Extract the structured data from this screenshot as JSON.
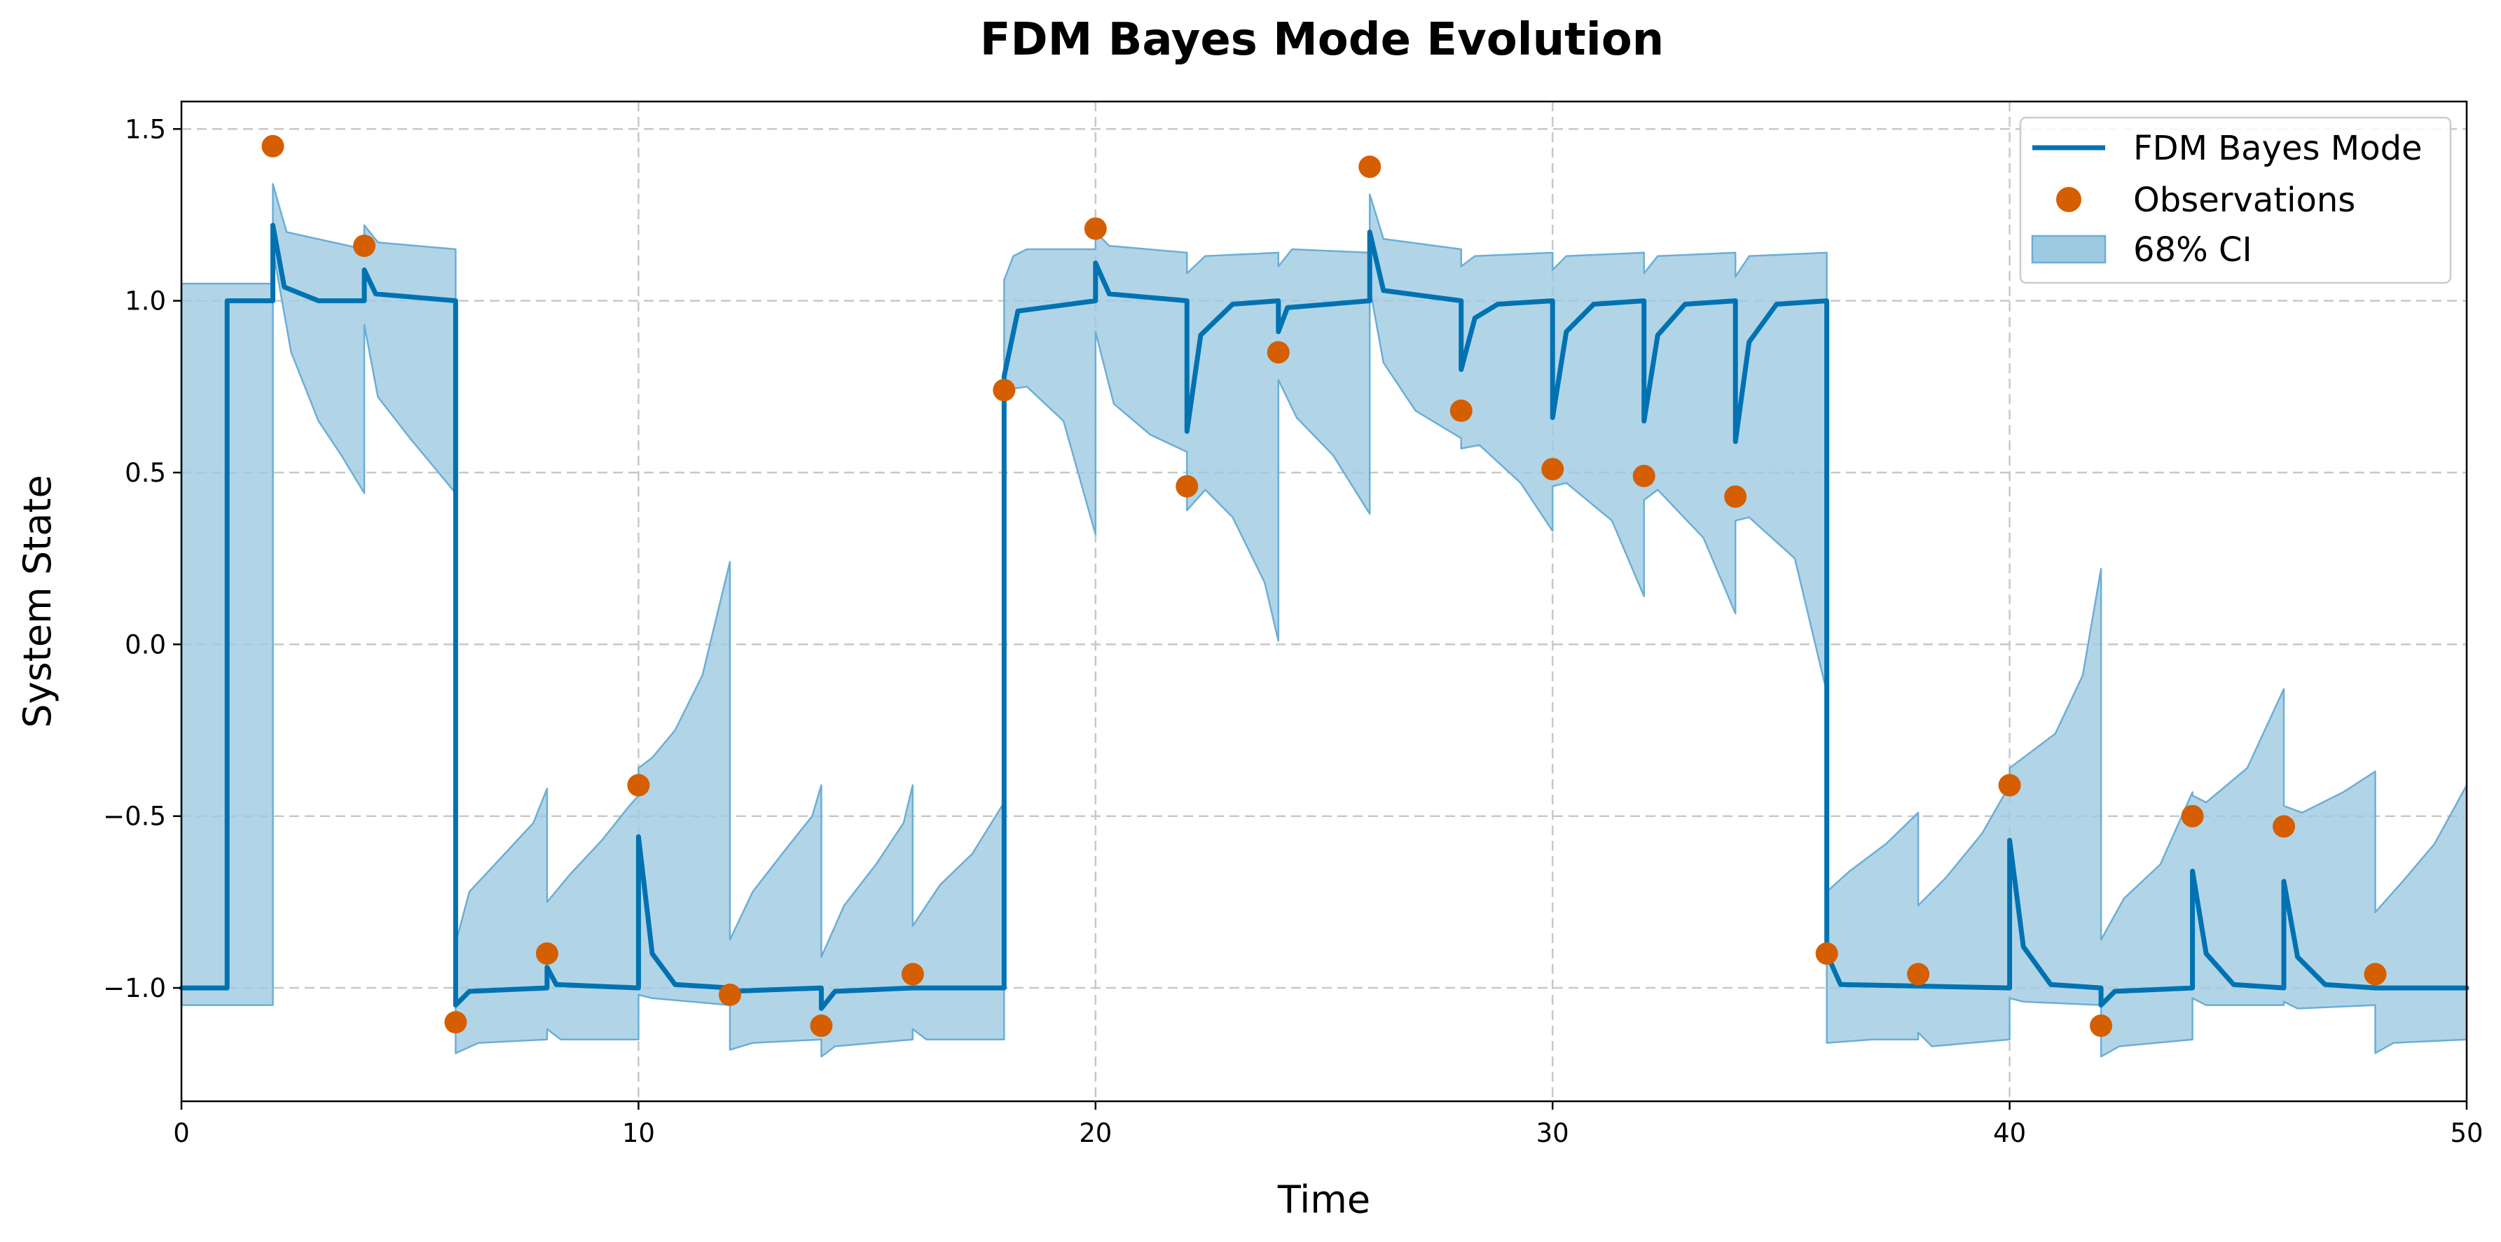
{
  "chart_data": {
    "type": "line",
    "title": "FDM Bayes Mode Evolution",
    "xlabel": "Time",
    "ylabel": "System State",
    "xlim": [
      0,
      50
    ],
    "ylim": [
      -1.33,
      1.58
    ],
    "xticks": [
      0,
      10,
      20,
      30,
      40,
      50
    ],
    "xtick_labels": [
      "0",
      "10",
      "20",
      "30",
      "40",
      "50"
    ],
    "yticks": [
      -1.0,
      -0.5,
      0.0,
      0.5,
      1.0,
      1.5
    ],
    "ytick_labels": [
      "−1.0",
      "−0.5",
      "0.0",
      "0.5",
      "1.0",
      "1.5"
    ],
    "grid": true,
    "legend_position": "top-right",
    "colors": {
      "mode_line": "#0072B2",
      "observations": "#D55E00",
      "ci_fill": "#9ECAE1",
      "ci_edge": "#6BAED6"
    },
    "series": [
      {
        "name": "FDM Bayes Mode",
        "kind": "line",
        "points": [
          [
            0,
            -1.0
          ],
          [
            1,
            -1.0
          ],
          [
            1,
            1.0
          ],
          [
            2,
            1.0
          ],
          [
            2,
            1.22
          ],
          [
            2.25,
            1.04
          ],
          [
            3,
            1.0
          ],
          [
            4,
            1.0
          ],
          [
            4,
            1.09
          ],
          [
            4.25,
            1.02
          ],
          [
            6,
            1.0
          ],
          [
            6,
            -1.05
          ],
          [
            6.3,
            -1.01
          ],
          [
            8,
            -1.0
          ],
          [
            8,
            -0.94
          ],
          [
            8.2,
            -0.99
          ],
          [
            10,
            -1.0
          ],
          [
            10,
            -0.56
          ],
          [
            10.3,
            -0.9
          ],
          [
            10.8,
            -0.99
          ],
          [
            12,
            -1.0
          ],
          [
            12,
            -1.01
          ],
          [
            14,
            -1.0
          ],
          [
            14,
            -1.06
          ],
          [
            14.3,
            -1.01
          ],
          [
            16,
            -1.0
          ],
          [
            18,
            -1.0
          ],
          [
            18,
            0.78
          ],
          [
            18.3,
            0.97
          ],
          [
            20,
            1.0
          ],
          [
            20,
            1.11
          ],
          [
            20.3,
            1.02
          ],
          [
            22,
            1.0
          ],
          [
            22,
            0.62
          ],
          [
            22.3,
            0.9
          ],
          [
            23,
            0.99
          ],
          [
            24,
            1.0
          ],
          [
            24,
            0.91
          ],
          [
            24.2,
            0.98
          ],
          [
            26,
            1.0
          ],
          [
            26,
            1.2
          ],
          [
            26.3,
            1.03
          ],
          [
            28,
            1.0
          ],
          [
            28,
            0.8
          ],
          [
            28.3,
            0.95
          ],
          [
            28.8,
            0.99
          ],
          [
            30,
            1.0
          ],
          [
            30,
            0.66
          ],
          [
            30.3,
            0.91
          ],
          [
            30.9,
            0.99
          ],
          [
            32,
            1.0
          ],
          [
            32,
            0.65
          ],
          [
            32.3,
            0.9
          ],
          [
            32.9,
            0.99
          ],
          [
            34,
            1.0
          ],
          [
            34,
            0.59
          ],
          [
            34.3,
            0.88
          ],
          [
            34.9,
            0.99
          ],
          [
            36,
            1.0
          ],
          [
            36,
            -0.9
          ],
          [
            36.3,
            -0.99
          ],
          [
            40,
            -1.0
          ],
          [
            40,
            -0.57
          ],
          [
            40.3,
            -0.88
          ],
          [
            40.9,
            -0.99
          ],
          [
            42,
            -1.0
          ],
          [
            42,
            -1.05
          ],
          [
            42.3,
            -1.01
          ],
          [
            44,
            -1.0
          ],
          [
            44,
            -0.66
          ],
          [
            44.3,
            -0.9
          ],
          [
            44.9,
            -0.99
          ],
          [
            46,
            -1.0
          ],
          [
            46,
            -0.69
          ],
          [
            46.3,
            -0.91
          ],
          [
            46.9,
            -0.99
          ],
          [
            48,
            -1.0
          ],
          [
            50,
            -1.0
          ]
        ]
      },
      {
        "name": "Observations",
        "kind": "scatter",
        "points": [
          [
            2,
            1.45
          ],
          [
            4,
            1.16
          ],
          [
            6,
            -1.1
          ],
          [
            8,
            -0.9
          ],
          [
            10,
            -0.41
          ],
          [
            12,
            -1.02
          ],
          [
            14,
            -1.11
          ],
          [
            16,
            -0.96
          ],
          [
            18,
            0.74
          ],
          [
            20,
            1.21
          ],
          [
            22,
            0.46
          ],
          [
            24,
            0.85
          ],
          [
            26,
            1.39
          ],
          [
            28,
            0.68
          ],
          [
            30,
            0.51
          ],
          [
            32,
            0.49
          ],
          [
            34,
            0.43
          ],
          [
            36,
            -0.9
          ],
          [
            38,
            -0.96
          ],
          [
            40,
            -0.41
          ],
          [
            42,
            -1.11
          ],
          [
            44,
            -0.5
          ],
          [
            46,
            -0.53
          ],
          [
            48,
            -0.96
          ]
        ]
      },
      {
        "name": "68% CI",
        "kind": "band",
        "upper": [
          [
            0,
            1.05
          ],
          [
            2,
            1.05
          ],
          [
            2,
            1.34
          ],
          [
            2.3,
            1.2
          ],
          [
            4,
            1.15
          ],
          [
            4,
            1.22
          ],
          [
            4.3,
            1.17
          ],
          [
            6,
            1.15
          ],
          [
            6,
            -0.87
          ],
          [
            6.3,
            -0.72
          ],
          [
            7,
            -0.62
          ],
          [
            7.7,
            -0.52
          ],
          [
            8,
            -0.42
          ],
          [
            8,
            -0.75
          ],
          [
            8.5,
            -0.67
          ],
          [
            9.2,
            -0.57
          ],
          [
            9.8,
            -0.47
          ],
          [
            10,
            -0.44
          ],
          [
            10,
            -0.36
          ],
          [
            10.3,
            -0.33
          ],
          [
            10.8,
            -0.25
          ],
          [
            11.4,
            -0.09
          ],
          [
            12,
            0.24
          ],
          [
            12,
            -0.86
          ],
          [
            12.5,
            -0.72
          ],
          [
            13.2,
            -0.6
          ],
          [
            13.8,
            -0.5
          ],
          [
            14,
            -0.41
          ],
          [
            14,
            -0.91
          ],
          [
            14.5,
            -0.76
          ],
          [
            15.2,
            -0.64
          ],
          [
            15.8,
            -0.52
          ],
          [
            16,
            -0.41
          ],
          [
            16,
            -0.82
          ],
          [
            16.6,
            -0.7
          ],
          [
            17.3,
            -0.61
          ],
          [
            18,
            -0.46
          ],
          [
            18,
            1.06
          ],
          [
            18.2,
            1.13
          ],
          [
            18.5,
            1.15
          ],
          [
            20,
            1.15
          ],
          [
            20,
            1.2
          ],
          [
            20.3,
            1.16
          ],
          [
            22,
            1.14
          ],
          [
            22,
            1.08
          ],
          [
            22.4,
            1.13
          ],
          [
            24,
            1.14
          ],
          [
            24,
            1.1
          ],
          [
            24.3,
            1.15
          ],
          [
            26,
            1.14
          ],
          [
            26,
            1.31
          ],
          [
            26.3,
            1.18
          ],
          [
            28,
            1.15
          ],
          [
            28,
            1.1
          ],
          [
            28.3,
            1.13
          ],
          [
            30,
            1.14
          ],
          [
            30,
            1.09
          ],
          [
            30.3,
            1.13
          ],
          [
            32,
            1.14
          ],
          [
            32,
            1.08
          ],
          [
            32.3,
            1.13
          ],
          [
            34,
            1.14
          ],
          [
            34,
            1.07
          ],
          [
            34.3,
            1.13
          ],
          [
            36,
            1.14
          ],
          [
            36,
            -0.72
          ],
          [
            36.5,
            -0.66
          ],
          [
            37.3,
            -0.58
          ],
          [
            38,
            -0.49
          ],
          [
            38,
            -0.76
          ],
          [
            38.6,
            -0.68
          ],
          [
            39.4,
            -0.55
          ],
          [
            40,
            -0.41
          ],
          [
            40,
            -0.36
          ],
          [
            40.3,
            -0.33
          ],
          [
            41,
            -0.26
          ],
          [
            41.6,
            -0.09
          ],
          [
            42,
            0.22
          ],
          [
            42,
            -0.86
          ],
          [
            42.5,
            -0.74
          ],
          [
            43.3,
            -0.64
          ],
          [
            44,
            -0.43
          ],
          [
            44,
            -0.44
          ],
          [
            44.3,
            -0.46
          ],
          [
            45.2,
            -0.36
          ],
          [
            46,
            -0.13
          ],
          [
            46,
            -0.47
          ],
          [
            46.4,
            -0.49
          ],
          [
            47.3,
            -0.43
          ],
          [
            48,
            -0.37
          ],
          [
            48,
            -0.78
          ],
          [
            48.6,
            -0.69
          ],
          [
            49.3,
            -0.58
          ],
          [
            50,
            -0.41
          ]
        ],
        "lower": [
          [
            0,
            -1.05
          ],
          [
            2,
            -1.05
          ],
          [
            2,
            1.15
          ],
          [
            2.4,
            0.85
          ],
          [
            3,
            0.65
          ],
          [
            3.5,
            0.55
          ],
          [
            4,
            0.44
          ],
          [
            4,
            0.93
          ],
          [
            4.3,
            0.72
          ],
          [
            5,
            0.6
          ],
          [
            6,
            0.44
          ],
          [
            6,
            -1.19
          ],
          [
            6.5,
            -1.16
          ],
          [
            8,
            -1.15
          ],
          [
            8,
            -1.12
          ],
          [
            8.3,
            -1.15
          ],
          [
            10,
            -1.15
          ],
          [
            10,
            -1.02
          ],
          [
            10.3,
            -1.03
          ],
          [
            12,
            -1.05
          ],
          [
            12,
            -1.18
          ],
          [
            12.5,
            -1.16
          ],
          [
            14,
            -1.15
          ],
          [
            14,
            -1.2
          ],
          [
            14.3,
            -1.17
          ],
          [
            16,
            -1.15
          ],
          [
            16,
            -1.12
          ],
          [
            16.3,
            -1.15
          ],
          [
            18,
            -1.15
          ],
          [
            18,
            0.74
          ],
          [
            18.5,
            0.75
          ],
          [
            19.3,
            0.65
          ],
          [
            20,
            0.32
          ],
          [
            20,
            0.91
          ],
          [
            20.4,
            0.7
          ],
          [
            21.2,
            0.61
          ],
          [
            22,
            0.56
          ],
          [
            22,
            0.39
          ],
          [
            22.4,
            0.45
          ],
          [
            23,
            0.37
          ],
          [
            23.7,
            0.18
          ],
          [
            24,
            0.01
          ],
          [
            24,
            0.77
          ],
          [
            24.4,
            0.66
          ],
          [
            25.2,
            0.55
          ],
          [
            26,
            0.38
          ],
          [
            26,
            1.04
          ],
          [
            26.3,
            0.82
          ],
          [
            27,
            0.68
          ],
          [
            28,
            0.6
          ],
          [
            28,
            0.57
          ],
          [
            28.4,
            0.58
          ],
          [
            29.3,
            0.47
          ],
          [
            30,
            0.33
          ],
          [
            30,
            0.46
          ],
          [
            30.3,
            0.47
          ],
          [
            31.3,
            0.36
          ],
          [
            32,
            0.14
          ],
          [
            32,
            0.42
          ],
          [
            32.3,
            0.45
          ],
          [
            33.3,
            0.31
          ],
          [
            34,
            0.09
          ],
          [
            34,
            0.36
          ],
          [
            34.3,
            0.37
          ],
          [
            35.3,
            0.25
          ],
          [
            36,
            -0.14
          ],
          [
            36,
            -1.16
          ],
          [
            37,
            -1.15
          ],
          [
            38,
            -1.15
          ],
          [
            38,
            -1.13
          ],
          [
            38.3,
            -1.17
          ],
          [
            40,
            -1.15
          ],
          [
            40,
            -1.03
          ],
          [
            40.3,
            -1.04
          ],
          [
            42,
            -1.05
          ],
          [
            42,
            -1.2
          ],
          [
            42.4,
            -1.17
          ],
          [
            44,
            -1.15
          ],
          [
            44,
            -1.03
          ],
          [
            44.3,
            -1.05
          ],
          [
            46,
            -1.05
          ],
          [
            46,
            -1.04
          ],
          [
            46.3,
            -1.06
          ],
          [
            48,
            -1.05
          ],
          [
            48,
            -1.19
          ],
          [
            48.4,
            -1.16
          ],
          [
            50,
            -1.15
          ]
        ]
      }
    ]
  }
}
